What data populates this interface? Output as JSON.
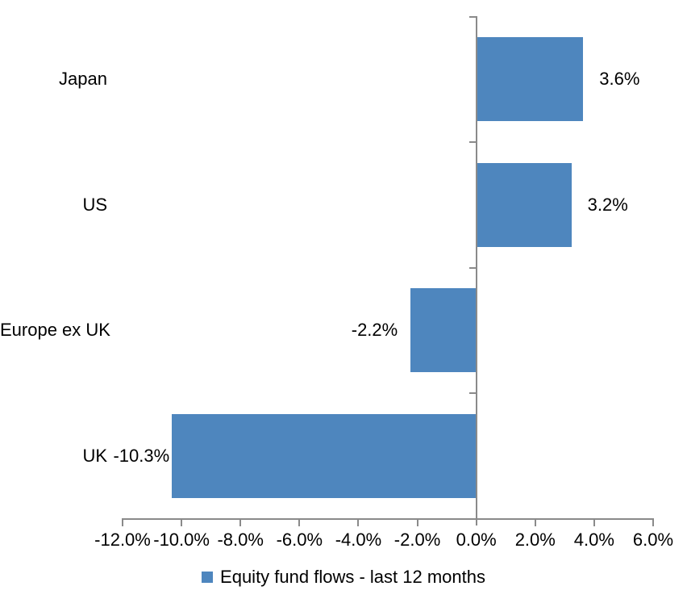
{
  "chart_data": {
    "type": "bar",
    "orientation": "horizontal",
    "title": "",
    "categories": [
      "Japan",
      "US",
      "Europe ex UK",
      "UK"
    ],
    "values": [
      3.6,
      3.2,
      -2.2,
      -10.3
    ],
    "data_labels": [
      "3.6%",
      "3.2%",
      "-2.2%",
      "-10.3%"
    ],
    "series_name": "Equity fund flows - last 12 months",
    "legend": {
      "label": "Equity fund flows - last 12 months",
      "position": "bottom"
    },
    "x_axis": {
      "tick_labels": [
        "-12.0%",
        "-10.0%",
        "-8.0%",
        "-6.0%",
        "-4.0%",
        "-2.0%",
        "0.0%",
        "2.0%",
        "4.0%",
        "6.0%"
      ],
      "tick_values": [
        -12,
        -10,
        -8,
        -6,
        -4,
        -2,
        0,
        2,
        4,
        6
      ],
      "xlim": [
        -12,
        6
      ]
    },
    "grid": "off",
    "colors": {
      "bar": "#4E86BE",
      "axis": "#8A8A8A",
      "text": "#000000",
      "background": "#FFFFFF"
    }
  }
}
